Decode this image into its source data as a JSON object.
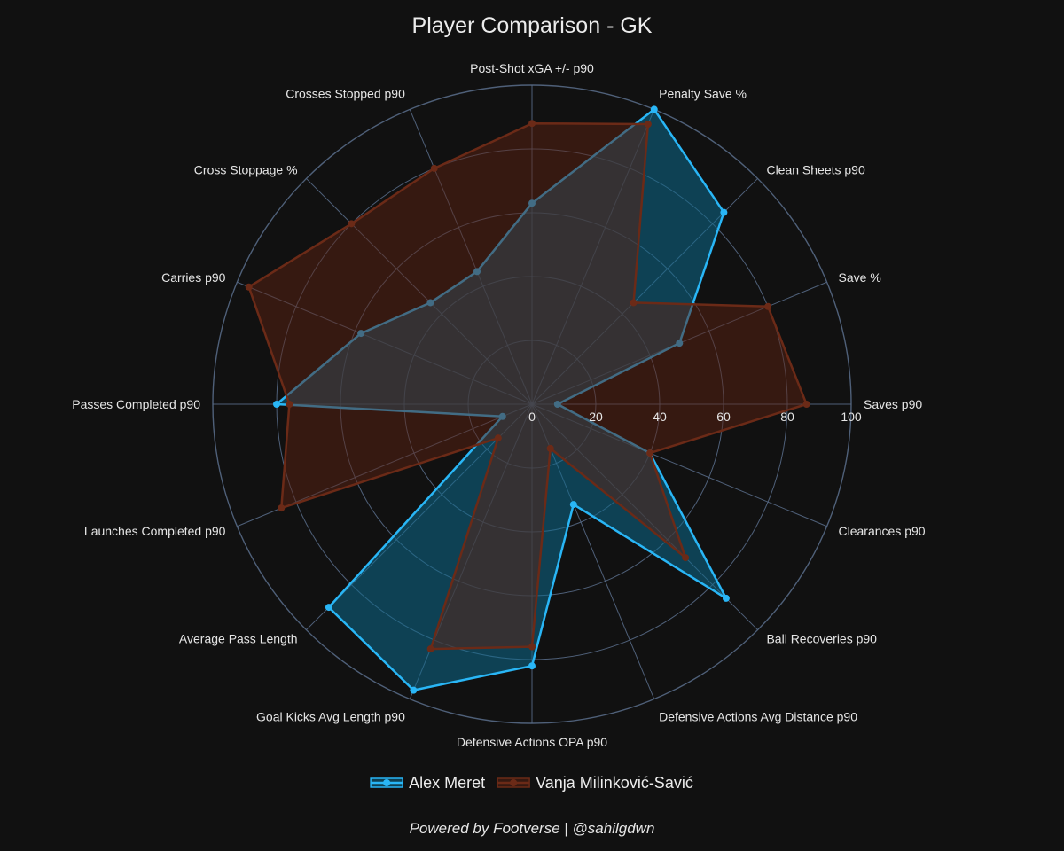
{
  "chart_data": {
    "type": "radar",
    "title": "Player Comparison - GK",
    "axes": [
      "Saves p90",
      "Save %",
      "Clean Sheets p90",
      "Penalty Save %",
      "Post-Shot xGA +/- p90",
      "Crosses Stopped p90",
      "Cross Stoppage %",
      "Carries p90",
      "Passes Completed p90",
      "Launches Completed p90",
      "Average Pass Length",
      "Goal Kicks Avg Length p90",
      "Defensive Actions OPA p90",
      "Defensive Actions Avg Distance p90",
      "Ball Recoveries p90",
      "Clearances p90"
    ],
    "radial_ticks": [
      "0",
      "20",
      "40",
      "60",
      "80",
      "100"
    ],
    "radial_range": [
      0,
      100
    ],
    "series": [
      {
        "name": "Alex Meret",
        "color": "#29b6f6",
        "fill": "rgba(13,105,140,0.55)",
        "values": [
          8,
          50,
          85,
          100,
          63,
          45,
          45,
          58,
          80,
          10,
          90,
          97,
          82,
          34,
          86,
          40
        ]
      },
      {
        "name": "Vanja Milinković-Savić",
        "color": "#6b2a17",
        "fill": "rgba(92,34,17,0.50)",
        "values": [
          86,
          80,
          45,
          95,
          88,
          80,
          80,
          96,
          76,
          85,
          15,
          83,
          76,
          15,
          68,
          40
        ]
      }
    ],
    "legend_position": "bottom-center",
    "grid": true
  },
  "footer": {
    "prefix": "Powered by Footverse",
    "separator": " | ",
    "handle": "@sahilgdwn"
  }
}
